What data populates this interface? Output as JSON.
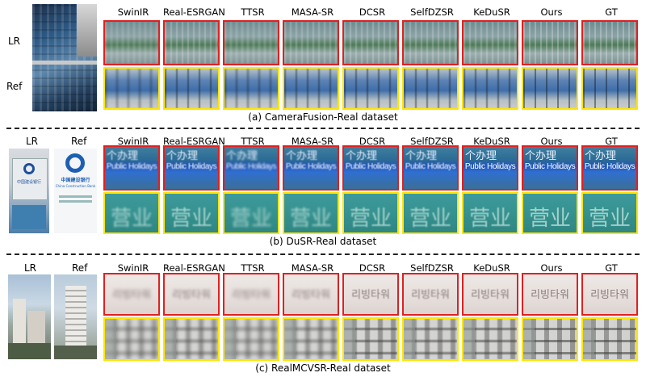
{
  "columns": [
    "SwinIR",
    "Real-ESRGAN",
    "TTSR",
    "MASA-SR",
    "DCSR",
    "SelfDZSR",
    "KeDuSR",
    "Ours",
    "GT"
  ],
  "panels": [
    {
      "key": "camerafusion",
      "lr_label": "LR",
      "ref_label": "Ref",
      "caption": "(a) CameraFusion-Real dataset"
    },
    {
      "key": "dusr",
      "lr_label": "LR",
      "ref_label": "Ref",
      "caption": "(b) DuSR-Real dataset",
      "crop_top_text": "Public Holidays",
      "crop_top_cjk": "个办理",
      "crop_bottom_text": "营业",
      "lr_sign_text": "中国建设银行",
      "ref_sign_text": "中国建设银行",
      "ref_sign_sub": "China Construction Bank"
    },
    {
      "key": "realmcvsr",
      "lr_label": "LR",
      "ref_label": "Ref",
      "caption": "(c) RealMCVSR-Real dataset",
      "crop_top_text": "리빙타워"
    }
  ],
  "colors": {
    "top_box": "#e02020",
    "bottom_box": "#ffe600"
  }
}
